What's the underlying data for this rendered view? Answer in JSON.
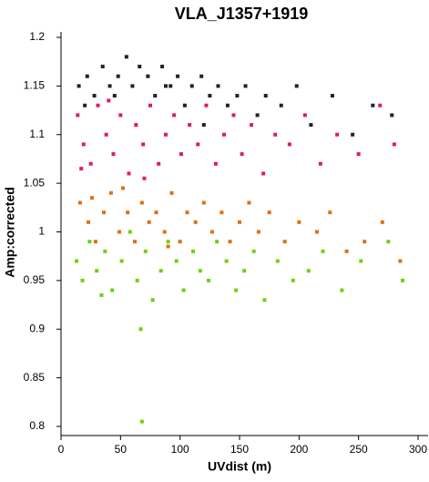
{
  "chart_data": {
    "type": "scatter",
    "title": "VLA_J1357+1919",
    "x_label": "UVdist (m)",
    "y_label": "Amp:corrected",
    "xlim": [
      0,
      300
    ],
    "xticks": [
      0,
      50,
      100,
      150,
      200,
      250,
      300
    ],
    "ylim": [
      0.8,
      1.2
    ],
    "yticks": [
      0.8,
      0.85,
      0.9,
      0.95,
      1,
      1.05,
      1.1,
      1.15,
      1.2
    ],
    "series": [
      {
        "color": "#222222",
        "x": [
          15,
          22,
          28,
          35,
          41,
          48,
          55,
          60,
          66,
          73,
          79,
          85,
          92,
          98,
          104,
          110,
          118,
          125,
          132,
          140,
          148,
          155,
          165,
          172,
          185,
          198,
          210,
          228,
          245,
          262,
          278,
          20,
          45,
          88,
          120
        ],
        "values": [
          1.15,
          1.16,
          1.14,
          1.17,
          1.15,
          1.16,
          1.18,
          1.15,
          1.17,
          1.16,
          1.14,
          1.17,
          1.15,
          1.16,
          1.13,
          1.15,
          1.16,
          1.14,
          1.15,
          1.13,
          1.14,
          1.15,
          1.12,
          1.14,
          1.13,
          1.15,
          1.11,
          1.14,
          1.1,
          1.13,
          1.12,
          1.13,
          1.14,
          1.15,
          1.11
        ]
      },
      {
        "color": "#e0186c",
        "x": [
          14,
          19,
          25,
          31,
          38,
          44,
          50,
          57,
          63,
          69,
          75,
          82,
          88,
          95,
          101,
          108,
          115,
          122,
          130,
          137,
          145,
          152,
          160,
          170,
          180,
          192,
          205,
          218,
          232,
          250,
          268,
          280,
          17,
          40,
          70
        ],
        "values": [
          1.12,
          1.09,
          1.07,
          1.13,
          1.1,
          1.08,
          1.12,
          1.06,
          1.11,
          1.09,
          1.13,
          1.07,
          1.1,
          1.12,
          1.08,
          1.11,
          1.09,
          1.13,
          1.07,
          1.1,
          1.12,
          1.08,
          1.11,
          1.06,
          1.1,
          1.09,
          1.12,
          1.07,
          1.1,
          1.08,
          1.13,
          1.09,
          1.065,
          1.135,
          1.055
        ]
      },
      {
        "color": "#e07010",
        "x": [
          16,
          23,
          29,
          36,
          42,
          49,
          56,
          62,
          68,
          74,
          80,
          87,
          93,
          100,
          106,
          113,
          120,
          127,
          135,
          142,
          150,
          158,
          166,
          175,
          188,
          200,
          215,
          226,
          240,
          255,
          270,
          285,
          26,
          52,
          90
        ],
        "values": [
          1.03,
          1.01,
          0.99,
          1.02,
          1.04,
          1,
          1.02,
          0.99,
          1.03,
          1.01,
          1.02,
          1,
          1.04,
          0.99,
          1.02,
          1.01,
          1.03,
          1,
          1.02,
          0.99,
          1.01,
          1.03,
          1,
          1.02,
          0.99,
          1.01,
          1,
          1.02,
          0.98,
          0.99,
          1.01,
          0.97,
          1.035,
          1.045,
          0.985
        ]
      },
      {
        "color": "#70d010",
        "x": [
          13,
          18,
          24,
          30,
          37,
          43,
          51,
          58,
          64,
          71,
          77,
          84,
          90,
          97,
          103,
          111,
          117,
          124,
          131,
          139,
          147,
          154,
          162,
          171,
          182,
          195,
          208,
          220,
          236,
          252,
          275,
          287,
          67,
          68,
          34
        ],
        "values": [
          0.97,
          0.95,
          0.99,
          0.96,
          0.98,
          0.94,
          0.97,
          1,
          0.95,
          0.98,
          0.93,
          0.96,
          0.99,
          0.97,
          0.94,
          0.98,
          0.96,
          0.95,
          0.99,
          0.97,
          0.94,
          0.96,
          0.98,
          0.93,
          0.97,
          0.95,
          0.96,
          0.98,
          0.94,
          0.97,
          0.99,
          0.95,
          0.9,
          0.805,
          0.935
        ]
      }
    ]
  }
}
